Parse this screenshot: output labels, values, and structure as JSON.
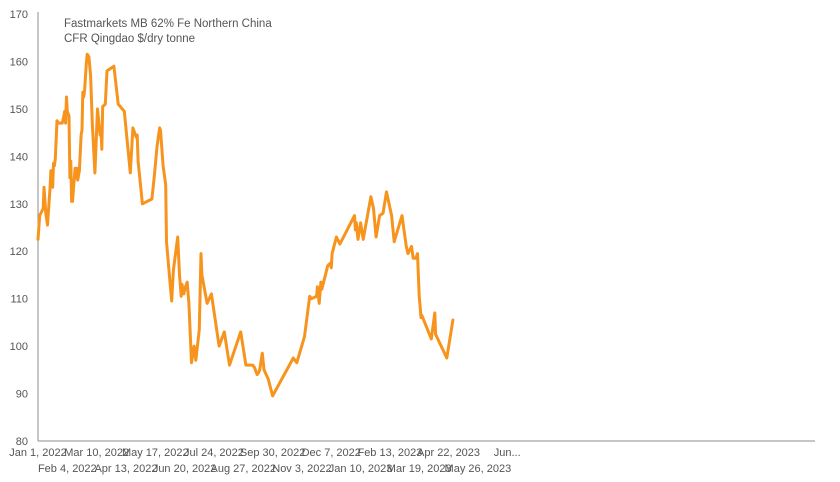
{
  "chart_data": {
    "type": "line",
    "title_lines": [
      "Fastmarkets MB 62% Fe Northern China",
      "CFR Qingdao $/dry tonne"
    ],
    "xlabel": "",
    "ylabel": "",
    "ylim": [
      80,
      170
    ],
    "y_ticks": [
      80,
      90,
      100,
      110,
      120,
      130,
      140,
      150,
      160,
      170
    ],
    "x_ticks_row1": [
      "Jan 1, 2022",
      "Mar 10, 2022",
      "May 17, 2022",
      "Jul 24, 2022",
      "Sep 30, 2022",
      "Dec 7, 2022",
      "Feb 13, 2023",
      "Apr 22, 2023",
      "Jun..."
    ],
    "x_ticks_row2": [
      "Feb 4, 2022",
      "Apr 13, 2022",
      "Jun 20, 2022",
      "Aug 27, 2022",
      "Nov 3, 2022",
      "Jan 10, 2023",
      "Mar 19, 2023",
      "May 26, 2023"
    ],
    "grid": false,
    "colors": {
      "line": "#F7941D",
      "axis": "#8c8c8c",
      "text": "#555555"
    },
    "series": [
      {
        "points": [
          [
            "2022-01-01",
            122.5
          ],
          [
            "2022-01-03",
            127.5
          ],
          [
            "2022-01-07",
            129.0
          ],
          [
            "2022-01-08",
            133.5
          ],
          [
            "2022-01-10",
            128.0
          ],
          [
            "2022-01-12",
            125.5
          ],
          [
            "2022-01-15",
            133.5
          ],
          [
            "2022-01-16",
            137.0
          ],
          [
            "2022-01-18",
            133.5
          ],
          [
            "2022-01-19",
            138.5
          ],
          [
            "2022-01-20",
            138.0
          ],
          [
            "2022-01-21",
            139.5
          ],
          [
            "2022-01-23",
            147.5
          ],
          [
            "2022-01-25",
            147.0
          ],
          [
            "2022-01-29",
            147.0
          ],
          [
            "2022-01-31",
            148.5
          ],
          [
            "2022-02-01",
            149.5
          ],
          [
            "2022-02-02",
            147.0
          ],
          [
            "2022-02-03",
            152.5
          ],
          [
            "2022-02-04",
            149.5
          ],
          [
            "2022-02-06",
            148.5
          ],
          [
            "2022-02-07",
            135.5
          ],
          [
            "2022-02-08",
            139.0
          ],
          [
            "2022-02-09",
            130.5
          ],
          [
            "2022-02-10",
            130.5
          ],
          [
            "2022-02-11",
            133.0
          ],
          [
            "2022-02-13",
            137.5
          ],
          [
            "2022-02-14",
            135.5
          ],
          [
            "2022-02-15",
            137.5
          ],
          [
            "2022-02-16",
            135.0
          ],
          [
            "2022-02-18",
            137.0
          ],
          [
            "2022-02-20",
            144.5
          ],
          [
            "2022-02-21",
            145.5
          ],
          [
            "2022-02-22",
            153.5
          ],
          [
            "2022-02-23",
            152.5
          ],
          [
            "2022-02-24",
            154.0
          ],
          [
            "2022-02-26",
            159.5
          ],
          [
            "2022-02-27",
            161.5
          ],
          [
            "2022-03-01",
            161.0
          ],
          [
            "2022-03-03",
            157.0
          ],
          [
            "2022-03-05",
            147.0
          ],
          [
            "2022-03-08",
            136.5
          ],
          [
            "2022-03-11",
            150.0
          ],
          [
            "2022-03-14",
            144.5
          ],
          [
            "2022-03-15",
            146.0
          ],
          [
            "2022-03-16",
            141.5
          ],
          [
            "2022-03-17",
            150.5
          ],
          [
            "2022-03-20",
            151.0
          ],
          [
            "2022-03-22",
            158.0
          ],
          [
            "2022-03-30",
            159.0
          ],
          [
            "2022-04-04",
            151.0
          ],
          [
            "2022-04-11",
            149.5
          ],
          [
            "2022-04-18",
            136.5
          ],
          [
            "2022-04-21",
            146.0
          ],
          [
            "2022-04-25",
            144.0
          ],
          [
            "2022-04-26",
            144.5
          ],
          [
            "2022-04-27",
            139.0
          ],
          [
            "2022-05-02",
            130.0
          ],
          [
            "2022-05-13",
            131.0
          ],
          [
            "2022-05-16",
            136.0
          ],
          [
            "2022-05-19",
            142.0
          ],
          [
            "2022-05-22",
            146.0
          ],
          [
            "2022-05-23",
            145.5
          ],
          [
            "2022-05-26",
            138.0
          ],
          [
            "2022-05-29",
            134.0
          ],
          [
            "2022-05-30",
            122.0
          ],
          [
            "2022-06-03",
            113.5
          ],
          [
            "2022-06-05",
            109.5
          ],
          [
            "2022-06-07",
            116.0
          ],
          [
            "2022-06-12",
            123.0
          ],
          [
            "2022-06-14",
            115.0
          ],
          [
            "2022-06-16",
            110.5
          ],
          [
            "2022-06-17",
            113.0
          ],
          [
            "2022-06-19",
            111.0
          ],
          [
            "2022-06-21",
            112.5
          ],
          [
            "2022-06-23",
            113.5
          ],
          [
            "2022-06-25",
            109.0
          ],
          [
            "2022-06-28",
            96.5
          ],
          [
            "2022-07-01",
            100.0
          ],
          [
            "2022-07-03",
            97.0
          ],
          [
            "2022-07-07",
            103.5
          ],
          [
            "2022-07-09",
            119.5
          ],
          [
            "2022-07-10",
            115.0
          ],
          [
            "2022-07-16",
            109.0
          ],
          [
            "2022-07-21",
            111.0
          ],
          [
            "2022-07-30",
            100.0
          ],
          [
            "2022-08-05",
            103.0
          ],
          [
            "2022-08-11",
            96.0
          ],
          [
            "2022-08-24",
            103.0
          ],
          [
            "2022-08-30",
            96.0
          ],
          [
            "2022-09-07",
            96.0
          ],
          [
            "2022-09-09",
            95.5
          ],
          [
            "2022-09-12",
            94.0
          ],
          [
            "2022-09-14",
            94.5
          ],
          [
            "2022-09-15",
            95.0
          ],
          [
            "2022-09-18",
            98.5
          ],
          [
            "2022-09-20",
            95.0
          ],
          [
            "2022-09-25",
            93.0
          ],
          [
            "2022-09-30",
            89.5
          ],
          [
            "2022-10-24",
            97.5
          ],
          [
            "2022-10-28",
            96.5
          ],
          [
            "2022-11-06",
            102.0
          ],
          [
            "2022-11-12",
            110.5
          ],
          [
            "2022-11-14",
            110.0
          ],
          [
            "2022-11-20",
            110.5
          ],
          [
            "2022-11-21",
            112.5
          ],
          [
            "2022-11-23",
            109.0
          ],
          [
            "2022-11-25",
            113.5
          ],
          [
            "2022-11-26",
            112.0
          ],
          [
            "2022-12-03",
            117.0
          ],
          [
            "2022-12-06",
            117.5
          ],
          [
            "2022-12-07",
            116.5
          ],
          [
            "2022-12-08",
            119.5
          ],
          [
            "2022-12-13",
            123.0
          ],
          [
            "2022-12-17",
            121.5
          ],
          [
            "2023-01-03",
            127.5
          ],
          [
            "2023-01-04",
            124.5
          ],
          [
            "2023-01-05",
            126.0
          ],
          [
            "2023-01-07",
            122.5
          ],
          [
            "2023-01-10",
            126.0
          ],
          [
            "2023-01-13",
            122.5
          ],
          [
            "2023-01-22",
            131.5
          ],
          [
            "2023-01-25",
            129.0
          ],
          [
            "2023-01-28",
            123.0
          ],
          [
            "2023-02-01",
            127.5
          ],
          [
            "2023-02-05",
            128.0
          ],
          [
            "2023-02-09",
            132.5
          ],
          [
            "2023-02-15",
            127.5
          ],
          [
            "2023-02-18",
            122.0
          ],
          [
            "2023-02-27",
            127.5
          ],
          [
            "2023-03-04",
            121.0
          ],
          [
            "2023-03-06",
            119.5
          ],
          [
            "2023-03-10",
            121.0
          ],
          [
            "2023-03-12",
            118.5
          ],
          [
            "2023-03-15",
            118.5
          ],
          [
            "2023-03-17",
            119.5
          ],
          [
            "2023-03-19",
            110.5
          ],
          [
            "2023-03-20",
            108.5
          ],
          [
            "2023-03-21",
            106.0
          ],
          [
            "2023-03-22",
            106.5
          ],
          [
            "2023-03-23",
            106.0
          ],
          [
            "2023-04-02",
            101.5
          ],
          [
            "2023-04-06",
            107.0
          ],
          [
            "2023-04-07",
            102.5
          ],
          [
            "2023-04-20",
            97.5
          ],
          [
            "2023-04-27",
            105.5
          ]
        ]
      }
    ]
  }
}
